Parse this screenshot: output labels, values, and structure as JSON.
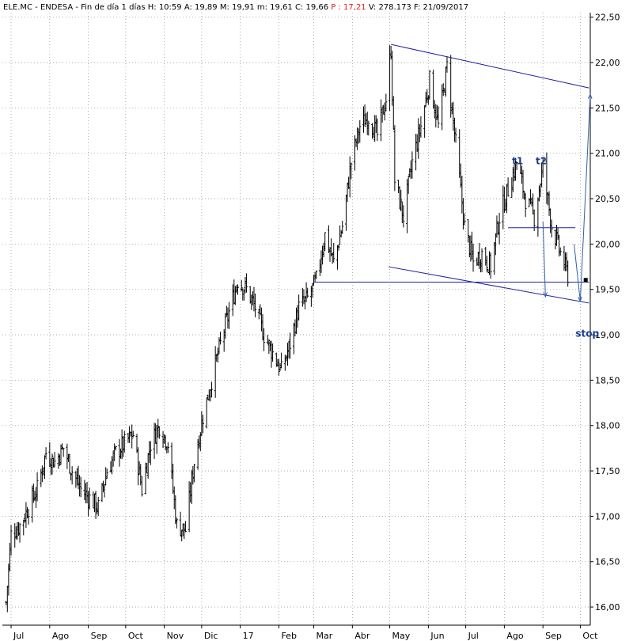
{
  "header": {
    "symbol_text": "ELE.MC - ENDESA - Fin de día 1 días",
    "fields": [
      {
        "label": "H:",
        "value": "10:59",
        "color": "#000000"
      },
      {
        "label": "A:",
        "value": "19,89",
        "color": "#000000"
      },
      {
        "label": "M:",
        "value": "19,91",
        "color": "#000000"
      },
      {
        "label": "m:",
        "value": "19,61",
        "color": "#000000"
      },
      {
        "label": "C:",
        "value": "19,66",
        "color": "#000000"
      },
      {
        "label": "P :",
        "value": "17,21",
        "color": "#e02020"
      },
      {
        "label": "V:",
        "value": "278.173",
        "color": "#000000"
      },
      {
        "label": "F:",
        "value": "21/09/2017",
        "color": "#000000"
      }
    ]
  },
  "colors": {
    "price_bars": "#000000",
    "trendlines": "#2020a0",
    "projection_arrows": "#3060a8",
    "annotation_text": "#1c3c8c",
    "header_highlight": "#e02020",
    "grid": "#9a9a9a"
  },
  "chart_data": {
    "type": "line",
    "style": "ohlc-bars",
    "title": "",
    "xlabel": "",
    "ylabel": "",
    "grid": true,
    "y_axis_side": "right",
    "ylim": [
      15.8,
      22.55
    ],
    "y_ticks": [
      16.0,
      16.5,
      17.0,
      17.5,
      18.0,
      18.5,
      19.0,
      19.5,
      20.0,
      20.5,
      21.0,
      21.5,
      22.0,
      22.5
    ],
    "y_tick_labels": [
      "16,00",
      "16,50",
      "17,00",
      "17,50",
      "18,00",
      "18,50",
      "19,00",
      "19,50",
      "20,00",
      "20,50",
      "21,00",
      "21,50",
      "22,00",
      "22,50"
    ],
    "x_ticks": [
      {
        "label": "Jul",
        "date": "2016-07-01"
      },
      {
        "label": "Ago",
        "date": "2016-08-01"
      },
      {
        "label": "Sep",
        "date": "2016-09-01"
      },
      {
        "label": "Oct",
        "date": "2016-10-01"
      },
      {
        "label": "Nov",
        "date": "2016-11-01"
      },
      {
        "label": "Dic",
        "date": "2016-12-01"
      },
      {
        "label": "17",
        "date": "2017-01-01"
      },
      {
        "label": "Feb",
        "date": "2017-02-01"
      },
      {
        "label": "Mar",
        "date": "2017-03-01"
      },
      {
        "label": "Abr",
        "date": "2017-04-01"
      },
      {
        "label": "May",
        "date": "2017-05-01"
      },
      {
        "label": "Jun",
        "date": "2017-06-01"
      },
      {
        "label": "Jul",
        "date": "2017-07-01"
      },
      {
        "label": "Ago",
        "date": "2017-08-01"
      },
      {
        "label": "Sep",
        "date": "2017-09-01"
      },
      {
        "label": "Oct",
        "date": "2017-10-01"
      }
    ],
    "series": [
      {
        "close_path": [
          [
            "2016-06-27",
            16.05
          ],
          [
            "2016-07-01",
            16.8
          ],
          [
            "2016-07-08",
            16.9
          ],
          [
            "2016-07-15",
            17.1
          ],
          [
            "2016-07-22",
            17.3
          ],
          [
            "2016-07-29",
            17.7
          ],
          [
            "2016-08-05",
            17.6
          ],
          [
            "2016-08-12",
            17.75
          ],
          [
            "2016-08-19",
            17.5
          ],
          [
            "2016-08-26",
            17.3
          ],
          [
            "2016-09-02",
            17.2
          ],
          [
            "2016-09-09",
            17.1
          ],
          [
            "2016-09-16",
            17.5
          ],
          [
            "2016-09-23",
            17.7
          ],
          [
            "2016-09-30",
            17.8
          ],
          [
            "2016-10-07",
            17.9
          ],
          [
            "2016-10-14",
            17.3
          ],
          [
            "2016-10-21",
            17.8
          ],
          [
            "2016-10-28",
            18.0
          ],
          [
            "2016-11-04",
            17.8
          ],
          [
            "2016-11-11",
            16.9
          ],
          [
            "2016-11-18",
            16.85
          ],
          [
            "2016-11-25",
            17.6
          ],
          [
            "2016-12-02",
            18.1
          ],
          [
            "2016-12-09",
            18.5
          ],
          [
            "2016-12-16",
            18.9
          ],
          [
            "2016-12-23",
            19.25
          ],
          [
            "2016-12-30",
            19.6
          ],
          [
            "2017-01-06",
            19.5
          ],
          [
            "2017-01-13",
            19.3
          ],
          [
            "2017-01-20",
            19.0
          ],
          [
            "2017-01-27",
            18.8
          ],
          [
            "2017-02-03",
            18.6
          ],
          [
            "2017-02-10",
            18.9
          ],
          [
            "2017-02-17",
            19.3
          ],
          [
            "2017-02-24",
            19.4
          ],
          [
            "2017-03-03",
            19.6
          ],
          [
            "2017-03-10",
            20.1
          ],
          [
            "2017-03-17",
            19.8
          ],
          [
            "2017-03-24",
            20.2
          ],
          [
            "2017-03-31",
            20.9
          ],
          [
            "2017-04-07",
            21.3
          ],
          [
            "2017-04-14",
            21.4
          ],
          [
            "2017-04-21",
            21.2
          ],
          [
            "2017-04-28",
            21.6
          ],
          [
            "2017-05-02",
            22.15
          ],
          [
            "2017-05-05",
            20.7
          ],
          [
            "2017-05-12",
            20.3
          ],
          [
            "2017-05-19",
            20.9
          ],
          [
            "2017-05-26",
            21.3
          ],
          [
            "2017-06-02",
            21.8
          ],
          [
            "2017-06-09",
            21.3
          ],
          [
            "2017-06-16",
            21.95
          ],
          [
            "2017-06-23",
            21.1
          ],
          [
            "2017-06-30",
            20.2
          ],
          [
            "2017-07-07",
            19.8
          ],
          [
            "2017-07-14",
            19.9
          ],
          [
            "2017-07-21",
            19.75
          ],
          [
            "2017-07-28",
            20.3
          ],
          [
            "2017-08-04",
            20.6
          ],
          [
            "2017-08-11",
            20.9
          ],
          [
            "2017-08-18",
            20.5
          ],
          [
            "2017-08-25",
            20.3
          ],
          [
            "2017-09-01",
            20.85
          ],
          [
            "2017-09-08",
            20.2
          ],
          [
            "2017-09-15",
            19.9
          ],
          [
            "2017-09-21",
            19.66
          ]
        ]
      }
    ],
    "annotations": [
      {
        "text": "t1",
        "date": "2017-08-11",
        "value": 21.0
      },
      {
        "text": "t2",
        "date": "2017-08-30",
        "value": 21.0
      },
      {
        "text": "stop",
        "date": "2017-10-01",
        "value": 19.1
      }
    ],
    "trendlines": [
      {
        "from": [
          "2017-05-02",
          22.2
        ],
        "to": [
          "2017-10-08",
          21.72
        ]
      },
      {
        "from": [
          "2017-04-30",
          19.75
        ],
        "to": [
          "2017-10-08",
          19.35
        ]
      },
      {
        "from": [
          "2017-03-01",
          19.58
        ],
        "to": [
          "2017-10-08",
          19.58
        ]
      },
      {
        "from": [
          "2017-08-04",
          20.18
        ],
        "to": [
          "2017-09-27",
          20.18
        ]
      }
    ],
    "arrows": [
      {
        "from": [
          "2017-09-01",
          20.25
        ],
        "to": [
          "2017-09-03",
          19.42
        ]
      },
      {
        "from": [
          "2017-09-26",
          20.0
        ],
        "to": [
          "2017-10-01",
          19.37
        ]
      },
      {
        "from": [
          "2017-10-01",
          19.38
        ],
        "to": [
          "2017-10-09",
          21.65
        ]
      }
    ],
    "last_close_marker": {
      "date": "2017-10-05",
      "value": 19.6
    }
  }
}
